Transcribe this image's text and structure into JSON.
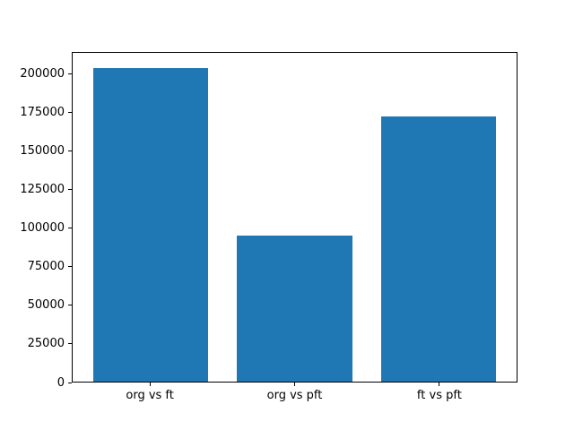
{
  "chart_data": {
    "type": "bar",
    "categories": [
      "org vs ft",
      "org vs pft",
      "ft vs pft"
    ],
    "values": [
      204000,
      95000,
      173000
    ],
    "title": "",
    "xlabel": "",
    "ylabel": "",
    "ylim": [
      0,
      214200
    ],
    "yticks": [
      0,
      25000,
      50000,
      75000,
      100000,
      125000,
      150000,
      175000,
      200000
    ],
    "bar_color": "#1f77b4",
    "grid": false,
    "legend": null
  },
  "colors": {
    "bar": "#1f77b4",
    "spine": "#000000",
    "background": "#ffffff",
    "text": "#000000"
  }
}
